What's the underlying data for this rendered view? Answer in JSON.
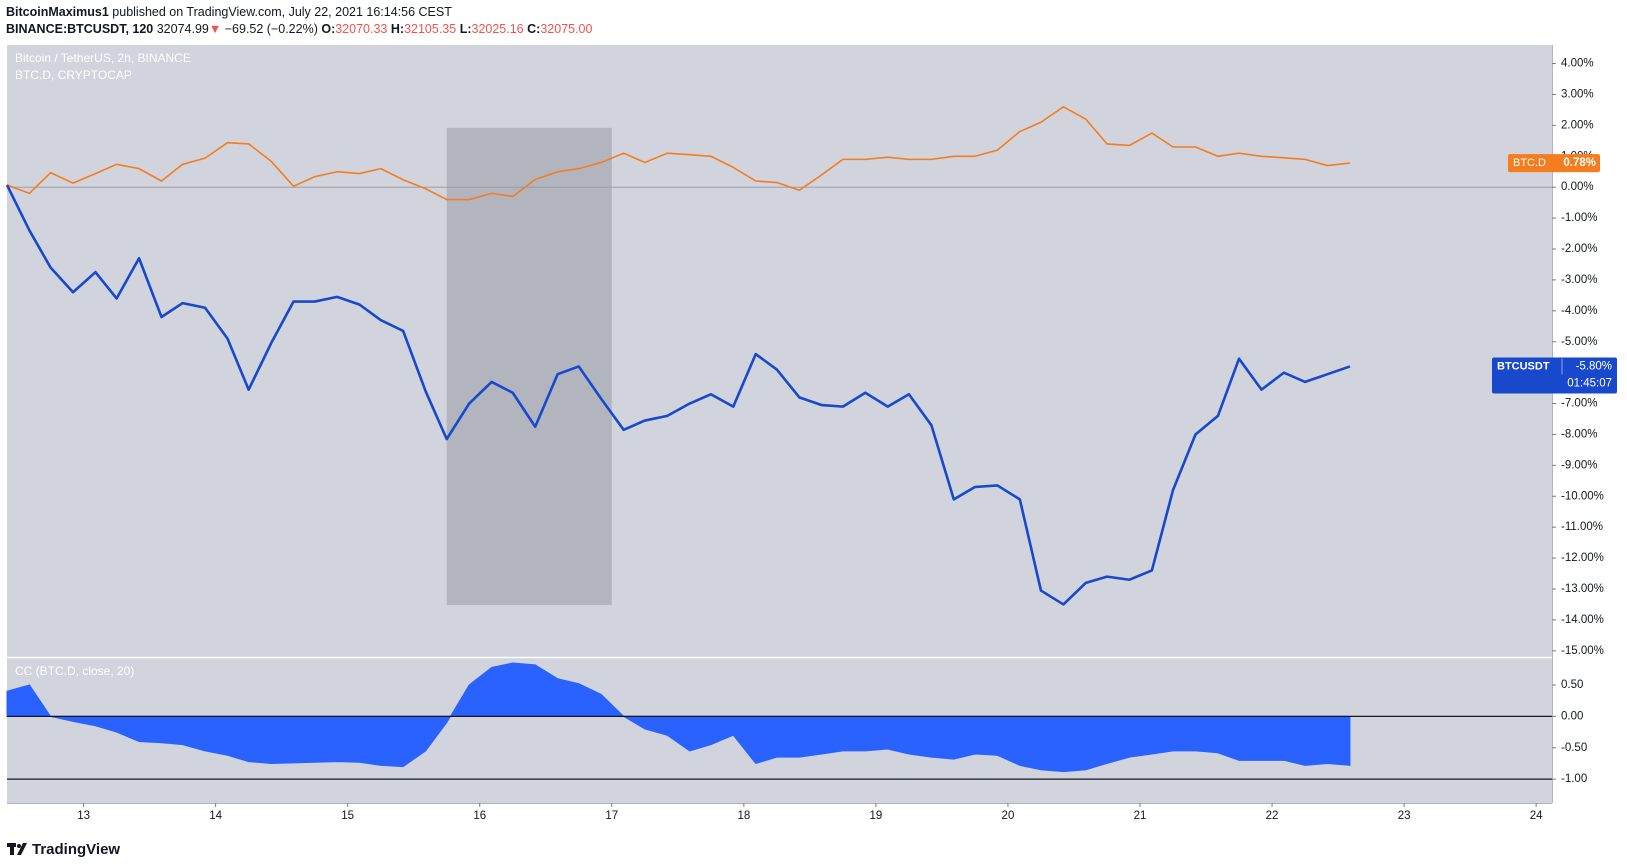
{
  "header": {
    "author": "BitcoinMaximus1",
    "published": "published on TradingView.com, July 22, 2021 16:14:56 CEST",
    "symbol": "BINANCE:BTCUSDT, 120",
    "last": "32074.99",
    "arrow": "▼",
    "change": "−69.52 (−0.22%)",
    "ohlc": [
      {
        "key": "O:",
        "value": "32070.33"
      },
      {
        "key": "H:",
        "value": "32105.35"
      },
      {
        "key": "L:",
        "value": "32025.16"
      },
      {
        "key": "C:",
        "value": "32075.00"
      }
    ]
  },
  "footer": {
    "brand": "TradingView"
  },
  "chart_data": [
    {
      "type": "line",
      "title": "Bitcoin / TetherUS, 2h, BINANCE",
      "subtitle": "BTC.D, CRYPTOCAP",
      "x": [
        12.42,
        12.59,
        12.75,
        12.92,
        13.09,
        13.25,
        13.42,
        13.59,
        13.75,
        13.92,
        14.09,
        14.25,
        14.42,
        14.59,
        14.75,
        14.92,
        15.09,
        15.25,
        15.42,
        15.59,
        15.75,
        15.92,
        16.09,
        16.25,
        16.42,
        16.59,
        16.75,
        16.92,
        17.09,
        17.25,
        17.42,
        17.59,
        17.75,
        17.92,
        18.09,
        18.25,
        18.42,
        18.59,
        18.75,
        18.92,
        19.09,
        19.25,
        19.42,
        19.59,
        19.75,
        19.92,
        20.09,
        20.25,
        20.42,
        20.59,
        20.75,
        20.92,
        21.09,
        21.25,
        21.42,
        21.59,
        21.75,
        21.92,
        22.09,
        22.25,
        22.42,
        22.59
      ],
      "series": [
        {
          "name": "BTC.D",
          "color": "#f57c1f",
          "values": [
            0.07,
            -0.2,
            0.47,
            0.13,
            0.44,
            0.74,
            0.6,
            0.2,
            0.74,
            0.94,
            1.44,
            1.4,
            0.84,
            0.03,
            0.34,
            0.5,
            0.44,
            0.6,
            0.24,
            -0.05,
            -0.4,
            -0.4,
            -0.2,
            -0.3,
            0.25,
            0.5,
            0.6,
            0.8,
            1.1,
            0.8,
            1.1,
            1.05,
            1.0,
            0.64,
            0.2,
            0.15,
            -0.1,
            0.4,
            0.9,
            0.9,
            0.97,
            0.9,
            0.9,
            1.0,
            1.0,
            1.2,
            1.8,
            2.1,
            2.6,
            2.2,
            1.4,
            1.35,
            1.75,
            1.3,
            1.3,
            1.0,
            1.1,
            1.0,
            0.95,
            0.9,
            0.7,
            0.78
          ],
          "value_labels": [
            null,
            null,
            null,
            null,
            null,
            null,
            null,
            null,
            null,
            null,
            null,
            null,
            null,
            null,
            null,
            null,
            null,
            null,
            null,
            null,
            null,
            null,
            null,
            null,
            null,
            null,
            null,
            null,
            null,
            null,
            null,
            null,
            null,
            null,
            null,
            null,
            null,
            null,
            null,
            null,
            null,
            null,
            null,
            null,
            null,
            null,
            null,
            null,
            null,
            null,
            null,
            null,
            null,
            null,
            null,
            null,
            null,
            null,
            null,
            null,
            null,
            "0.78%"
          ]
        },
        {
          "name": "BTCUSDT",
          "color": "#1848cc",
          "countdown": "01:45:07",
          "values": [
            0.07,
            -1.4,
            -2.6,
            -3.4,
            -2.75,
            -3.6,
            -2.3,
            -4.2,
            -3.75,
            -3.9,
            -4.9,
            -6.55,
            -5.05,
            -3.7,
            -3.7,
            -3.55,
            -3.8,
            -4.3,
            -4.65,
            -6.6,
            -8.15,
            -7.0,
            -6.3,
            -6.65,
            -7.75,
            -6.05,
            -5.8,
            -6.85,
            -7.85,
            -7.55,
            -7.4,
            -7.0,
            -6.7,
            -7.1,
            -5.4,
            -5.9,
            -6.8,
            -7.05,
            -7.1,
            -6.65,
            -7.1,
            -6.7,
            -7.7,
            -10.1,
            -9.7,
            -9.65,
            -10.1,
            -13.05,
            -13.5,
            -12.8,
            -12.6,
            -12.7,
            -12.4,
            -9.8,
            -8.0,
            -7.4,
            -5.55,
            -6.55,
            -6.0,
            -6.3,
            -6.05,
            -5.8
          ],
          "value_labels": [
            null,
            null,
            null,
            null,
            null,
            null,
            null,
            null,
            null,
            null,
            null,
            null,
            null,
            null,
            null,
            null,
            null,
            null,
            null,
            null,
            null,
            null,
            null,
            null,
            null,
            null,
            null,
            null,
            null,
            null,
            null,
            null,
            null,
            null,
            null,
            null,
            null,
            null,
            null,
            null,
            null,
            null,
            null,
            null,
            null,
            null,
            null,
            null,
            null,
            null,
            null,
            null,
            null,
            null,
            null,
            null,
            null,
            null,
            null,
            null,
            null,
            "-5.80%"
          ]
        }
      ],
      "highlight": {
        "x": [
          15.75,
          17.0
        ],
        "y": [
          1.92,
          -13.52
        ],
        "color": "#b2b5be"
      },
      "hlines": [
        0
      ],
      "xlim": [
        12.42,
        24.12
      ],
      "ylim": [
        -15.2,
        4.6
      ],
      "yticks": [
        {
          "value": 4,
          "label": "4.00%"
        },
        {
          "value": 3,
          "label": "3.00%"
        },
        {
          "value": 2,
          "label": "2.00%"
        },
        {
          "value": 1,
          "label": "1.00%"
        },
        {
          "value": 0,
          "label": "0.00%"
        },
        {
          "value": -1,
          "label": "-1.00%"
        },
        {
          "value": -2,
          "label": "-2.00%"
        },
        {
          "value": -3,
          "label": "-3.00%"
        },
        {
          "value": -4,
          "label": "-4.00%"
        },
        {
          "value": -5,
          "label": "-5.00%"
        },
        {
          "value": -6,
          "label": "-6.00%"
        },
        {
          "value": -7,
          "label": "-7.00%"
        },
        {
          "value": -8,
          "label": "-8.00%"
        },
        {
          "value": -9,
          "label": "-9.00%"
        },
        {
          "value": -10,
          "label": "-10.00%"
        },
        {
          "value": -11,
          "label": "-11.00%"
        },
        {
          "value": -12,
          "label": "-12.00%"
        },
        {
          "value": -13,
          "label": "-13.00%"
        },
        {
          "value": -14,
          "label": "-14.00%"
        },
        {
          "value": -15,
          "label": "-15.00%"
        }
      ]
    },
    {
      "type": "area",
      "title": "CC (BTC.D, close, 20)",
      "color": "#2962ff",
      "x": [
        12.42,
        12.59,
        12.75,
        12.92,
        13.09,
        13.25,
        13.42,
        13.59,
        13.75,
        13.92,
        14.09,
        14.25,
        14.42,
        14.59,
        14.75,
        14.92,
        15.09,
        15.25,
        15.42,
        15.59,
        15.75,
        15.92,
        16.09,
        16.25,
        16.42,
        16.59,
        16.75,
        16.92,
        17.09,
        17.25,
        17.42,
        17.59,
        17.75,
        17.92,
        18.09,
        18.25,
        18.42,
        18.59,
        18.75,
        18.92,
        19.09,
        19.25,
        19.42,
        19.59,
        19.75,
        19.92,
        20.09,
        20.25,
        20.42,
        20.59,
        20.75,
        20.92,
        21.09,
        21.25,
        21.42,
        21.59,
        21.75,
        21.92,
        22.09,
        22.25,
        22.42,
        22.59
      ],
      "values": [
        0.4,
        0.5,
        0.0,
        -0.08,
        -0.15,
        -0.25,
        -0.4,
        -0.42,
        -0.45,
        -0.55,
        -0.62,
        -0.72,
        -0.75,
        -0.74,
        -0.73,
        -0.72,
        -0.73,
        -0.78,
        -0.8,
        -0.55,
        -0.1,
        0.5,
        0.78,
        0.85,
        0.82,
        0.6,
        0.52,
        0.35,
        0.0,
        -0.2,
        -0.3,
        -0.55,
        -0.45,
        -0.3,
        -0.75,
        -0.65,
        -0.65,
        -0.6,
        -0.55,
        -0.55,
        -0.52,
        -0.6,
        -0.65,
        -0.68,
        -0.6,
        -0.62,
        -0.78,
        -0.85,
        -0.88,
        -0.85,
        -0.75,
        -0.65,
        -0.6,
        -0.55,
        -0.55,
        -0.58,
        -0.7,
        -0.7,
        -0.7,
        -0.78,
        -0.75,
        -0.78
      ],
      "hlines": [
        0,
        -1
      ],
      "xlim": [
        12.42,
        24.12
      ],
      "ylim": [
        -1.38,
        0.93
      ],
      "xticks": [
        13,
        14,
        15,
        16,
        17,
        18,
        19,
        20,
        21,
        22,
        23,
        24
      ],
      "yticks": [
        {
          "value": 0.5,
          "label": "0.50"
        },
        {
          "value": 0,
          "label": "0.00"
        },
        {
          "value": -0.5,
          "label": "-0.50"
        },
        {
          "value": -1,
          "label": "-1.00"
        }
      ]
    }
  ]
}
